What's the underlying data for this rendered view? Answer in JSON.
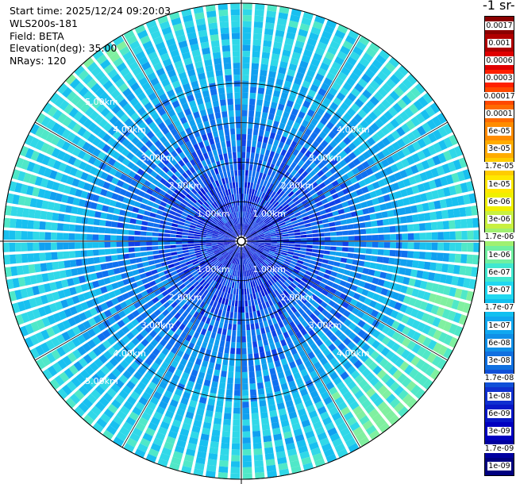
{
  "info": {
    "start_time": "Start time: 2025/12/24 09:20:03",
    "instrument": "WLS200s-181",
    "field": "Field: BETA",
    "elevation": "Elevation(deg): 35.00",
    "nrays": "NRays: 120"
  },
  "colorbar": {
    "title": "-1 sr-",
    "labels": [
      "0.0017",
      "0.001",
      "0.0006",
      "0.0003",
      "0.00017",
      "0.0001",
      "6e-05",
      "3e-05",
      "1.7e-05",
      "1e-05",
      "6e-06",
      "3e-06",
      "1.7e-06",
      "1e-06",
      "6e-07",
      "3e-07",
      "1.7e-07",
      "1e-07",
      "6e-08",
      "3e-08",
      "1.7e-08",
      "1e-08",
      "6e-09",
      "3e-09",
      "1.7e-09",
      "1e-09"
    ],
    "colors": [
      "#8b0000",
      "#b00000",
      "#e00000",
      "#ff2000",
      "#ff4800",
      "#ff6a00",
      "#ff8c00",
      "#ffac00",
      "#ffcc00",
      "#ffe800",
      "#f0f000",
      "#c8f040",
      "#a0f070",
      "#70f0a0",
      "#40e8d0",
      "#20d8f0",
      "#10c0f0",
      "#10a8f0",
      "#1090e8",
      "#1070e0",
      "#1050d8",
      "#1030d0",
      "#0818c8",
      "#0000c0",
      "#0000a0",
      "#000080"
    ]
  },
  "chart_data": {
    "type": "ppi",
    "rings_km": [
      1,
      2,
      3,
      4,
      5
    ],
    "ring_labels": [
      "1.00km",
      "2.00km",
      "3.00km",
      "4.00km",
      "5.00km"
    ],
    "max_range_km": 5.0,
    "nrays": 120,
    "spokes_deg": [
      0,
      30,
      60,
      90,
      120,
      150,
      180,
      210,
      240,
      270,
      300,
      330
    ]
  }
}
